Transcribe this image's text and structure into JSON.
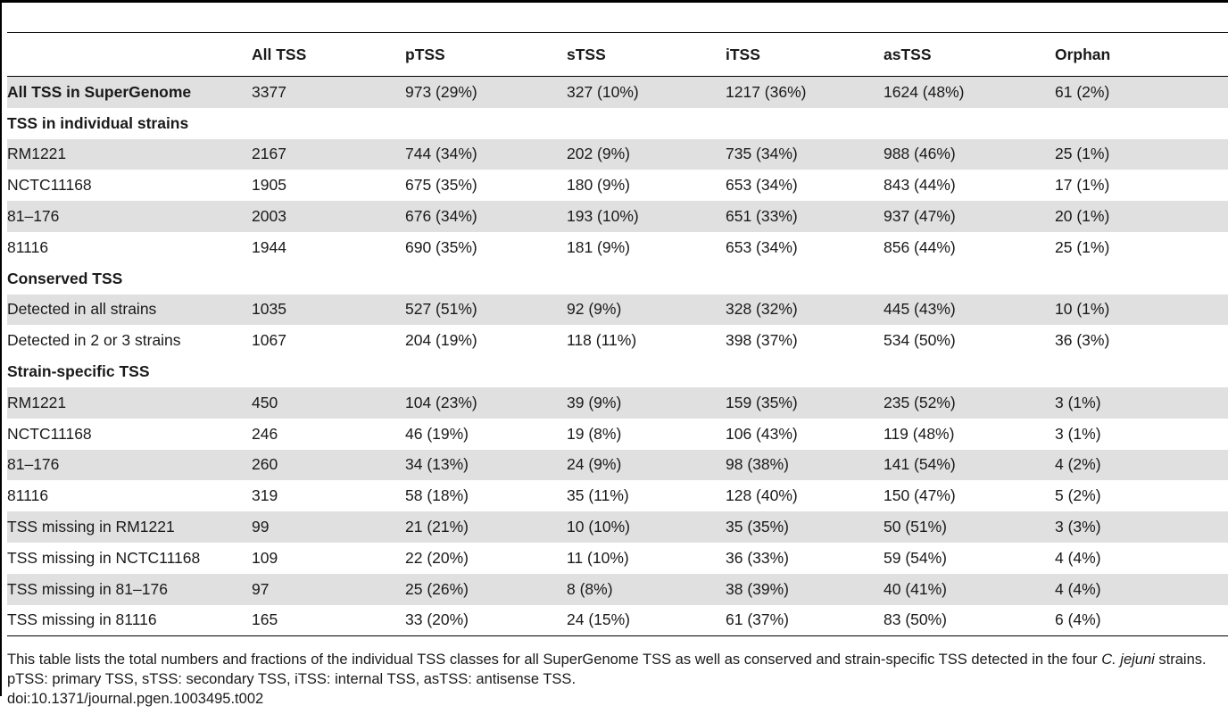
{
  "table": {
    "headers": [
      "",
      "All TSS",
      "pTSS",
      "sTSS",
      "iTSS",
      "asTSS",
      "Orphan"
    ],
    "rows": [
      {
        "kind": "bold",
        "cells": [
          "All TSS in SuperGenome",
          "3377",
          "973 (29%)",
          "327 (10%)",
          "1217 (36%)",
          "1624 (48%)",
          "61 (2%)"
        ]
      },
      {
        "kind": "section",
        "cells": [
          "TSS in individual strains",
          "",
          "",
          "",
          "",
          "",
          ""
        ]
      },
      {
        "kind": "data",
        "cells": [
          "RM1221",
          "2167",
          "744 (34%)",
          "202 (9%)",
          "735 (34%)",
          "988 (46%)",
          "25 (1%)"
        ]
      },
      {
        "kind": "data",
        "cells": [
          "NCTC11168",
          "1905",
          "675 (35%)",
          "180 (9%)",
          "653 (34%)",
          "843 (44%)",
          "17 (1%)"
        ]
      },
      {
        "kind": "data",
        "cells": [
          "81–176",
          "2003",
          "676 (34%)",
          "193 (10%)",
          "651 (33%)",
          "937 (47%)",
          "20 (1%)"
        ]
      },
      {
        "kind": "data",
        "cells": [
          "81116",
          "1944",
          "690 (35%)",
          "181 (9%)",
          "653 (34%)",
          "856 (44%)",
          "25 (1%)"
        ]
      },
      {
        "kind": "section",
        "cells": [
          "Conserved TSS",
          "",
          "",
          "",
          "",
          "",
          ""
        ]
      },
      {
        "kind": "data",
        "cells": [
          "Detected in all strains",
          "1035",
          "527 (51%)",
          "92 (9%)",
          "328 (32%)",
          "445 (43%)",
          "10 (1%)"
        ]
      },
      {
        "kind": "data",
        "cells": [
          "Detected in 2 or 3 strains",
          "1067",
          "204 (19%)",
          "118 (11%)",
          "398 (37%)",
          "534 (50%)",
          "36 (3%)"
        ]
      },
      {
        "kind": "section",
        "cells": [
          "Strain-specific TSS",
          "",
          "",
          "",
          "",
          "",
          ""
        ]
      },
      {
        "kind": "data",
        "cells": [
          "RM1221",
          "450",
          "104 (23%)",
          "39 (9%)",
          "159 (35%)",
          "235 (52%)",
          "3 (1%)"
        ]
      },
      {
        "kind": "data",
        "cells": [
          "NCTC11168",
          "246",
          "46 (19%)",
          "19 (8%)",
          "106 (43%)",
          "119 (48%)",
          "3 (1%)"
        ]
      },
      {
        "kind": "data",
        "cells": [
          "81–176",
          "260",
          "34 (13%)",
          "24 (9%)",
          "98 (38%)",
          "141 (54%)",
          "4 (2%)"
        ]
      },
      {
        "kind": "data",
        "cells": [
          "81116",
          "319",
          "58 (18%)",
          "35 (11%)",
          "128 (40%)",
          "150 (47%)",
          "5 (2%)"
        ]
      },
      {
        "kind": "data",
        "cells": [
          "TSS missing in RM1221",
          "99",
          "21 (21%)",
          "10 (10%)",
          "35 (35%)",
          "50 (51%)",
          "3 (3%)"
        ]
      },
      {
        "kind": "data",
        "cells": [
          "TSS missing in NCTC11168",
          "109",
          "22 (20%)",
          "11 (10%)",
          "36 (33%)",
          "59 (54%)",
          "4 (4%)"
        ]
      },
      {
        "kind": "data",
        "cells": [
          "TSS missing in 81–176",
          "97",
          "25 (26%)",
          "8 (8%)",
          "38 (39%)",
          "40 (41%)",
          "4 (4%)"
        ]
      },
      {
        "kind": "data",
        "cells": [
          "TSS missing in 81116",
          "165",
          "33 (20%)",
          "24 (15%)",
          "61 (37%)",
          "83 (50%)",
          "6 (4%)"
        ]
      }
    ]
  },
  "footnote": {
    "text_before": "This table lists the total numbers and fractions of the individual TSS classes for all SuperGenome TSS as well as conserved and strain-specific TSS detected in the four ",
    "species": "C. jejuni",
    "text_after": " strains. pTSS: primary TSS, sTSS: secondary TSS, iTSS: internal TSS, asTSS: antisense TSS.",
    "doi": "doi:10.1371/journal.pgen.1003495.t002"
  },
  "colors": {
    "shaded_row": "#e0e0e0",
    "rule": "#000000"
  }
}
